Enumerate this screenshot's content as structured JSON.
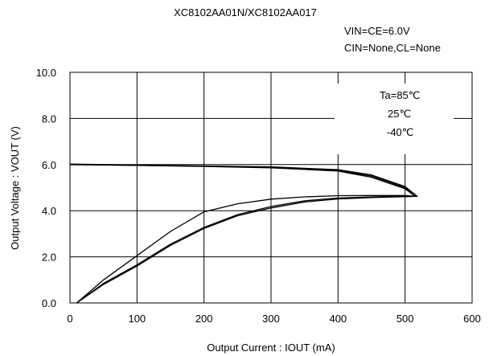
{
  "chart_data": {
    "type": "line",
    "title": "XC8102AA01N/XC8102AA017",
    "conditions": [
      "VIN=CE=6.0V",
      "CIN=None,CL=None"
    ],
    "xlabel": "Output Current : IOUT (mA)",
    "ylabel": "Output Voltage : VOUT (V)",
    "xlim": [
      0,
      600
    ],
    "ylim": [
      0,
      10
    ],
    "x_ticks": [
      "0",
      "100",
      "200",
      "300",
      "400",
      "500",
      "600"
    ],
    "y_ticks": [
      "0.0",
      "2.0",
      "4.0",
      "6.0",
      "8.0",
      "10.0"
    ],
    "grid": true,
    "legend_position": "top-right",
    "legend_entries": [
      "Ta=85℃",
      "25℃",
      "-40℃"
    ],
    "series_color": "#000000",
    "series": [
      {
        "name": "Ta=85℃",
        "x": [
          0,
          100,
          200,
          300,
          400,
          450,
          500,
          515,
          500,
          450,
          400,
          350,
          300,
          250,
          200,
          150,
          100,
          50,
          10
        ],
        "y": [
          6.0,
          5.96,
          5.92,
          5.86,
          5.72,
          5.45,
          4.95,
          4.62,
          4.61,
          4.57,
          4.51,
          4.38,
          4.12,
          3.78,
          3.23,
          2.5,
          1.6,
          0.8,
          0.0
        ]
      },
      {
        "name": "25℃",
        "x": [
          0,
          100,
          200,
          300,
          400,
          450,
          500,
          518,
          500,
          450,
          400,
          350,
          300,
          250,
          200,
          150,
          100,
          50,
          10
        ],
        "y": [
          6.0,
          5.97,
          5.93,
          5.88,
          5.75,
          5.5,
          5.0,
          4.62,
          4.63,
          4.6,
          4.55,
          4.43,
          4.18,
          3.83,
          3.28,
          2.55,
          1.65,
          0.85,
          0.0
        ]
      },
      {
        "name": "-40℃",
        "x": [
          0,
          100,
          200,
          300,
          400,
          450,
          500,
          518,
          500,
          450,
          400,
          350,
          300,
          250,
          200,
          150,
          100,
          50,
          10
        ],
        "y": [
          6.02,
          5.98,
          5.94,
          5.9,
          5.78,
          5.55,
          5.05,
          4.62,
          4.66,
          4.66,
          4.65,
          4.6,
          4.5,
          4.3,
          3.95,
          3.1,
          2.05,
          1.0,
          0.0
        ]
      }
    ]
  }
}
